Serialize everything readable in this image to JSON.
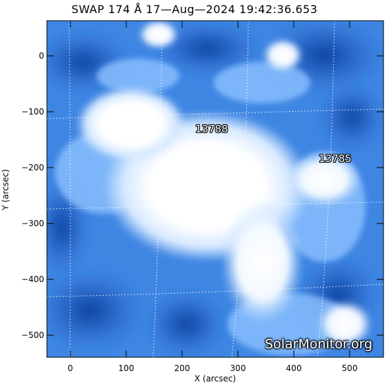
{
  "title": "SWAP 174 Å 17—Aug—2024 19:42:36.653",
  "axes": {
    "xlabel": "X (arcsec)",
    "ylabel": "Y (arcsec)",
    "xticks": [
      "0",
      "100",
      "200",
      "300",
      "400",
      "500"
    ],
    "yticks": [
      "0",
      "−100",
      "−200",
      "−300",
      "−400",
      "−500"
    ]
  },
  "regions": [
    {
      "label": "13788"
    },
    {
      "label": "13785"
    }
  ],
  "credit": "SolarMonitor.org",
  "colors": {
    "background": "#ffffff",
    "deep_blue": "#0b3fa0",
    "mid_blue": "#3b87e6",
    "light_blue": "#a9d0ff",
    "saturated": "#ffffff"
  }
}
